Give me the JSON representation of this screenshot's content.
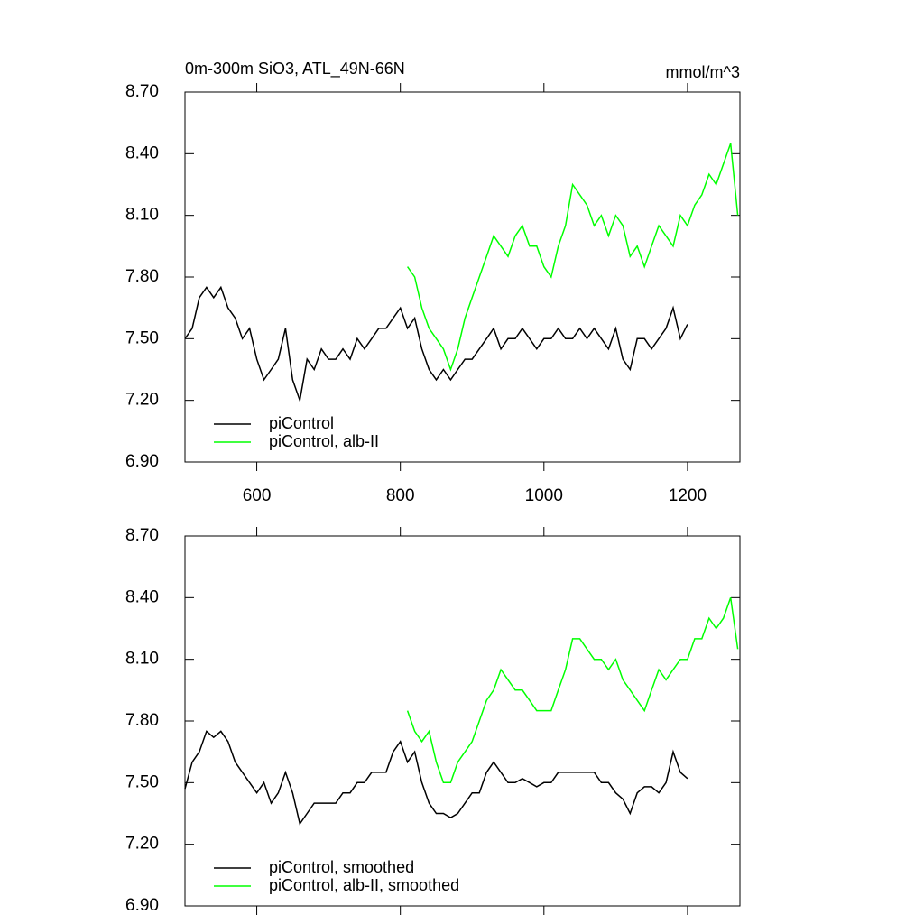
{
  "chart_data": [
    {
      "type": "line",
      "title": "0m-300m SiO3, ATL_49N-66N",
      "units": "mmol/m^3",
      "xlim": [
        500,
        1273
      ],
      "ylim": [
        6.9,
        8.7
      ],
      "xticks": [
        600,
        800,
        1000,
        1200
      ],
      "xtick_labels": true,
      "yticks": [
        {
          "value": 6.9,
          "label": "6.90"
        },
        {
          "value": 7.2,
          "label": "7.20"
        },
        {
          "value": 7.5,
          "label": "7.50"
        },
        {
          "value": 7.8,
          "label": "7.80"
        },
        {
          "value": 8.1,
          "label": "8.10"
        },
        {
          "value": 8.4,
          "label": "8.40"
        },
        {
          "value": 8.7,
          "label": "8.70"
        }
      ],
      "legend": "lower left",
      "series": [
        {
          "name": "piControl",
          "color": "#000000",
          "x": [
            500,
            510,
            520,
            530,
            540,
            550,
            560,
            570,
            580,
            590,
            600,
            610,
            620,
            630,
            640,
            650,
            660,
            670,
            680,
            690,
            700,
            710,
            720,
            730,
            740,
            750,
            760,
            770,
            780,
            790,
            800,
            810,
            820,
            830,
            840,
            850,
            860,
            870,
            880,
            890,
            900,
            910,
            920,
            930,
            940,
            950,
            960,
            970,
            980,
            990,
            1000,
            1010,
            1020,
            1030,
            1040,
            1050,
            1060,
            1070,
            1080,
            1090,
            1100,
            1110,
            1120,
            1130,
            1140,
            1150,
            1160,
            1170,
            1180,
            1190,
            1200
          ],
          "values": [
            7.5,
            7.55,
            7.7,
            7.75,
            7.7,
            7.75,
            7.65,
            7.6,
            7.5,
            7.55,
            7.4,
            7.3,
            7.35,
            7.4,
            7.55,
            7.3,
            7.2,
            7.4,
            7.35,
            7.45,
            7.4,
            7.4,
            7.45,
            7.4,
            7.5,
            7.45,
            7.5,
            7.55,
            7.55,
            7.6,
            7.65,
            7.55,
            7.6,
            7.45,
            7.35,
            7.3,
            7.35,
            7.3,
            7.35,
            7.4,
            7.4,
            7.45,
            7.5,
            7.55,
            7.45,
            7.5,
            7.5,
            7.55,
            7.5,
            7.45,
            7.5,
            7.5,
            7.55,
            7.5,
            7.5,
            7.55,
            7.5,
            7.55,
            7.5,
            7.45,
            7.55,
            7.4,
            7.35,
            7.5,
            7.5,
            7.45,
            7.5,
            7.55,
            7.65,
            7.5,
            7.57
          ]
        },
        {
          "name": "piControl, alb-II",
          "color": "#00ff00",
          "x": [
            810,
            820,
            830,
            840,
            850,
            860,
            870,
            880,
            890,
            900,
            910,
            920,
            930,
            940,
            950,
            960,
            970,
            980,
            990,
            1000,
            1010,
            1020,
            1030,
            1040,
            1050,
            1060,
            1070,
            1080,
            1090,
            1100,
            1110,
            1120,
            1130,
            1140,
            1150,
            1160,
            1170,
            1180,
            1190,
            1200,
            1210,
            1220,
            1230,
            1240,
            1250,
            1260,
            1270
          ],
          "values": [
            7.85,
            7.8,
            7.65,
            7.55,
            7.5,
            7.45,
            7.35,
            7.45,
            7.6,
            7.7,
            7.8,
            7.9,
            8.0,
            7.95,
            7.9,
            8.0,
            8.05,
            7.95,
            7.95,
            7.85,
            7.8,
            7.95,
            8.05,
            8.25,
            8.2,
            8.15,
            8.05,
            8.1,
            8.0,
            8.1,
            8.05,
            7.9,
            7.95,
            7.85,
            7.95,
            8.05,
            8.0,
            7.95,
            8.1,
            8.05,
            8.15,
            8.2,
            8.3,
            8.25,
            8.35,
            8.45,
            8.1
          ]
        }
      ]
    },
    {
      "type": "line",
      "xlim": [
        500,
        1273
      ],
      "ylim": [
        6.9,
        8.7
      ],
      "xticks": [
        600,
        800,
        1000,
        1200
      ],
      "xtick_labels": false,
      "yticks": [
        {
          "value": 6.9,
          "label": "6.90"
        },
        {
          "value": 7.2,
          "label": "7.20"
        },
        {
          "value": 7.5,
          "label": "7.50"
        },
        {
          "value": 7.8,
          "label": "7.80"
        },
        {
          "value": 8.1,
          "label": "8.10"
        },
        {
          "value": 8.4,
          "label": "8.40"
        },
        {
          "value": 8.7,
          "label": "8.70"
        }
      ],
      "legend": "lower left",
      "series": [
        {
          "name": "piControl, smoothed",
          "color": "#000000",
          "x": [
            500,
            510,
            520,
            530,
            540,
            550,
            560,
            570,
            580,
            590,
            600,
            610,
            620,
            630,
            640,
            650,
            660,
            670,
            680,
            690,
            700,
            710,
            720,
            730,
            740,
            750,
            760,
            770,
            780,
            790,
            800,
            810,
            820,
            830,
            840,
            850,
            860,
            870,
            880,
            890,
            900,
            910,
            920,
            930,
            940,
            950,
            960,
            970,
            980,
            990,
            1000,
            1010,
            1020,
            1030,
            1040,
            1050,
            1060,
            1070,
            1080,
            1090,
            1100,
            1110,
            1120,
            1130,
            1140,
            1150,
            1160,
            1170,
            1180,
            1190,
            1200
          ],
          "values": [
            7.47,
            7.6,
            7.65,
            7.75,
            7.72,
            7.75,
            7.7,
            7.6,
            7.55,
            7.5,
            7.45,
            7.5,
            7.4,
            7.45,
            7.55,
            7.45,
            7.3,
            7.35,
            7.4,
            7.4,
            7.4,
            7.4,
            7.45,
            7.45,
            7.5,
            7.5,
            7.55,
            7.55,
            7.55,
            7.65,
            7.7,
            7.6,
            7.65,
            7.5,
            7.4,
            7.35,
            7.35,
            7.33,
            7.35,
            7.4,
            7.45,
            7.45,
            7.55,
            7.6,
            7.55,
            7.5,
            7.5,
            7.52,
            7.5,
            7.48,
            7.5,
            7.5,
            7.55,
            7.55,
            7.55,
            7.55,
            7.55,
            7.55,
            7.5,
            7.5,
            7.45,
            7.42,
            7.35,
            7.45,
            7.48,
            7.48,
            7.45,
            7.5,
            7.65,
            7.55,
            7.52
          ]
        },
        {
          "name": "piControl, alb-II, smoothed",
          "color": "#00ff00",
          "x": [
            810,
            820,
            830,
            840,
            850,
            860,
            870,
            880,
            890,
            900,
            910,
            920,
            930,
            940,
            950,
            960,
            970,
            980,
            990,
            1000,
            1010,
            1020,
            1030,
            1040,
            1050,
            1060,
            1070,
            1080,
            1090,
            1100,
            1110,
            1120,
            1130,
            1140,
            1150,
            1160,
            1170,
            1180,
            1190,
            1200,
            1210,
            1220,
            1230,
            1240,
            1250,
            1260,
            1270
          ],
          "values": [
            7.85,
            7.75,
            7.7,
            7.75,
            7.6,
            7.5,
            7.5,
            7.6,
            7.65,
            7.7,
            7.8,
            7.9,
            7.95,
            8.05,
            8.0,
            7.95,
            7.95,
            7.9,
            7.85,
            7.85,
            7.85,
            7.95,
            8.05,
            8.2,
            8.2,
            8.15,
            8.1,
            8.1,
            8.05,
            8.1,
            8.0,
            7.95,
            7.9,
            7.85,
            7.95,
            8.05,
            8.0,
            8.05,
            8.1,
            8.1,
            8.2,
            8.2,
            8.3,
            8.25,
            8.3,
            8.4,
            8.15
          ]
        }
      ]
    }
  ]
}
